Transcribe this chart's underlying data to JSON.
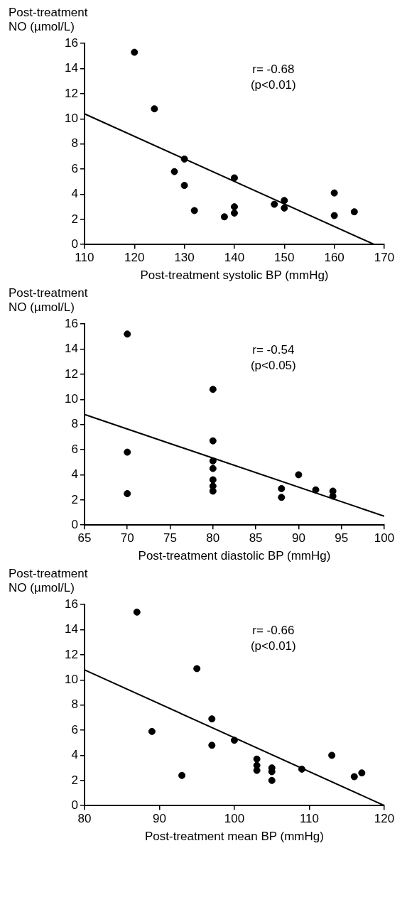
{
  "chart_data": [
    {
      "type": "scatter",
      "ylabel": "Post-treatment\nNO (µmol/L)",
      "xlabel": "Post-treatment systolic BP (mmHg)",
      "xlim": [
        110,
        170
      ],
      "xticks": [
        110,
        120,
        130,
        140,
        150,
        160,
        170
      ],
      "ylim": [
        0,
        16
      ],
      "yticks": [
        0,
        2,
        4,
        6,
        8,
        10,
        12,
        14,
        16
      ],
      "annotations": [
        "r= -0.68",
        "(p<0.01)"
      ],
      "series": [
        {
          "marker": "circle",
          "color": "#000000",
          "x": [
            120,
            124,
            128,
            130,
            130,
            132,
            138,
            140,
            140,
            140,
            148,
            150,
            150,
            160,
            160,
            164
          ],
          "values": [
            15.3,
            10.8,
            5.8,
            6.8,
            4.7,
            2.7,
            2.2,
            5.3,
            3.0,
            2.5,
            3.2,
            3.5,
            2.9,
            4.1,
            2.3,
            2.6
          ]
        },
        {
          "type": "line",
          "marker": "none",
          "color": "#000000",
          "x": [
            110,
            168
          ],
          "values": [
            10.4,
            0
          ]
        }
      ]
    },
    {
      "type": "scatter",
      "ylabel": "Post-treatment\nNO (µmol/L)",
      "xlabel": "Post-treatment diastolic BP (mmHg)",
      "xlim": [
        65,
        100
      ],
      "xticks": [
        65,
        70,
        75,
        80,
        85,
        90,
        95,
        100
      ],
      "ylim": [
        0,
        16
      ],
      "yticks": [
        0,
        2,
        4,
        6,
        8,
        10,
        12,
        14,
        16
      ],
      "annotations": [
        "r= -0.54",
        "(p<0.05)"
      ],
      "series": [
        {
          "marker": "circle",
          "color": "#000000",
          "x": [
            70,
            70,
            70,
            80,
            80,
            80,
            80,
            80,
            80,
            80,
            88,
            88,
            90,
            92,
            94,
            94
          ],
          "values": [
            15.2,
            5.8,
            2.5,
            10.8,
            6.7,
            5.1,
            4.5,
            3.6,
            3.1,
            2.7,
            2.9,
            2.2,
            4.0,
            2.8,
            2.7,
            2.3
          ]
        },
        {
          "type": "line",
          "marker": "none",
          "color": "#000000",
          "x": [
            65,
            100
          ],
          "values": [
            8.8,
            0.7
          ]
        }
      ]
    },
    {
      "type": "scatter",
      "ylabel": "Post-treatment\nNO (µmol/L)",
      "xlabel": "Post-treatment mean BP (mmHg)",
      "xlim": [
        80,
        120
      ],
      "xticks": [
        80,
        90,
        100,
        110,
        120
      ],
      "ylim": [
        0,
        16
      ],
      "yticks": [
        0,
        2,
        4,
        6,
        8,
        10,
        12,
        14,
        16
      ],
      "annotations": [
        "r= -0.66",
        "(p<0.01)"
      ],
      "series": [
        {
          "marker": "circle",
          "color": "#000000",
          "x": [
            87,
            89,
            93,
            95,
            97,
            97,
            100,
            103,
            103,
            103,
            105,
            105,
            105,
            109,
            113,
            116,
            117
          ],
          "values": [
            15.4,
            5.9,
            2.4,
            10.9,
            6.9,
            4.8,
            5.2,
            3.7,
            3.2,
            2.8,
            3.0,
            2.7,
            2.0,
            2.9,
            4.0,
            2.3,
            2.6
          ]
        },
        {
          "type": "line",
          "marker": "none",
          "color": "#000000",
          "x": [
            80,
            120
          ],
          "values": [
            10.8,
            0
          ]
        }
      ]
    }
  ]
}
